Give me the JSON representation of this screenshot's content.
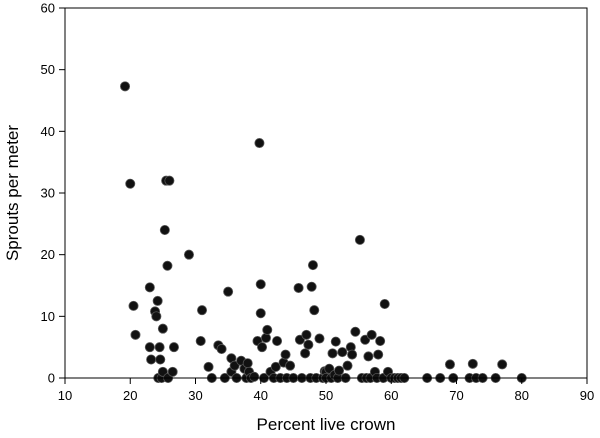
{
  "chart_data": {
    "type": "scatter",
    "title": "",
    "xlabel": "Percent live crown",
    "ylabel": "Sprouts per meter",
    "xlim": [
      10,
      90
    ],
    "ylim": [
      0,
      60
    ],
    "xticks": [
      10,
      20,
      30,
      40,
      50,
      60,
      70,
      80,
      90
    ],
    "yticks": [
      0,
      10,
      20,
      30,
      40,
      50,
      60
    ],
    "grid": false,
    "legend": "none",
    "marker_color": "#111111",
    "series": [
      {
        "x": [
          19.2,
          20.0,
          20.5,
          20.8,
          23.0,
          23.0,
          23.2,
          23.8,
          24.0,
          24.2,
          24.3,
          24.5,
          24.6,
          24.8,
          25.0,
          25.0,
          25.3,
          25.5,
          25.7,
          25.8,
          26.0,
          26.5,
          26.7,
          29.0,
          30.8,
          31.0,
          32.0,
          32.5,
          33.5,
          34.0,
          34.5,
          35.0,
          35.5,
          35.5,
          36.0,
          36.3,
          37.0,
          37.5,
          37.8,
          38.0,
          38.2,
          38.5,
          39.0,
          39.5,
          39.8,
          40.0,
          40.0,
          40.2,
          40.5,
          40.8,
          41.0,
          41.5,
          42.0,
          42.3,
          42.5,
          43.0,
          43.5,
          43.8,
          44.0,
          44.5,
          45.0,
          45.8,
          46.0,
          46.3,
          46.8,
          47.0,
          47.3,
          47.6,
          47.8,
          48.0,
          48.2,
          48.5,
          49.0,
          49.5,
          49.8,
          50.0,
          50.0,
          50.5,
          50.8,
          51.0,
          51.3,
          51.5,
          51.8,
          52.0,
          52.5,
          53.0,
          53.3,
          53.8,
          54.0,
          54.5,
          55.2,
          55.5,
          56.0,
          56.2,
          56.5,
          56.8,
          57.0,
          57.5,
          57.8,
          58.0,
          58.3,
          58.8,
          59.0,
          59.5,
          60.0,
          60.5,
          61.0,
          61.5,
          62.0,
          65.5,
          67.5,
          69.0,
          69.5,
          72.0,
          72.5,
          73.0,
          74.0,
          76.0,
          77.0,
          80.0
        ],
        "y": [
          47.3,
          31.5,
          11.7,
          7.0,
          5.0,
          14.7,
          3.0,
          10.8,
          10.0,
          12.5,
          0.0,
          5.0,
          3.0,
          0.0,
          8.0,
          1.0,
          24.0,
          32.0,
          18.2,
          0.0,
          32.0,
          1.0,
          5.0,
          20.0,
          6.0,
          11.0,
          1.8,
          0.0,
          5.3,
          4.7,
          0.0,
          14.0,
          3.2,
          1.0,
          2.0,
          0.0,
          2.8,
          1.5,
          0.0,
          2.4,
          1.0,
          0.0,
          0.2,
          6.0,
          38.1,
          15.2,
          10.5,
          5.0,
          0.0,
          6.5,
          7.8,
          1.0,
          0.0,
          1.8,
          6.0,
          0.0,
          2.5,
          3.8,
          0.0,
          2.0,
          0.0,
          14.6,
          6.2,
          0.0,
          4.0,
          7.0,
          5.4,
          0.0,
          14.8,
          18.3,
          11.0,
          0.0,
          6.4,
          0.0,
          1.1,
          1.0,
          0.0,
          1.5,
          0.0,
          4.0,
          0.5,
          5.9,
          0.0,
          1.2,
          4.2,
          0.0,
          2.0,
          5.0,
          3.8,
          7.5,
          22.4,
          0.0,
          6.2,
          0.0,
          3.5,
          0.0,
          7.0,
          1.0,
          0.0,
          3.8,
          6.0,
          0.0,
          12.0,
          1.0,
          0.0,
          0.0,
          0.0,
          0.0,
          0.0,
          0.0,
          0.0,
          2.2,
          0.0,
          0.0,
          2.3,
          0.0,
          0.0,
          0.0,
          2.2,
          0.0
        ]
      }
    ]
  }
}
